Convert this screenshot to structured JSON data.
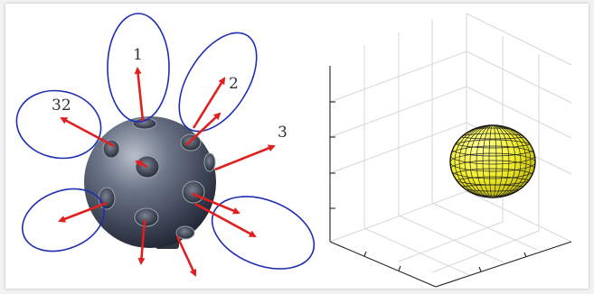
{
  "left_figure": {
    "labels": {
      "l1": "1",
      "l2": "2",
      "l3": "3",
      "l32": "32"
    },
    "colors": {
      "ellipse": "#1f2fb0",
      "arrow": "#e01f1f",
      "sphere": "#4a5468"
    }
  },
  "right_figure": {
    "colors": {
      "ellipsoid": "#f2ee2a",
      "mesh": "#222222",
      "axes": "#222222",
      "grid": "#d7d7d7"
    }
  }
}
